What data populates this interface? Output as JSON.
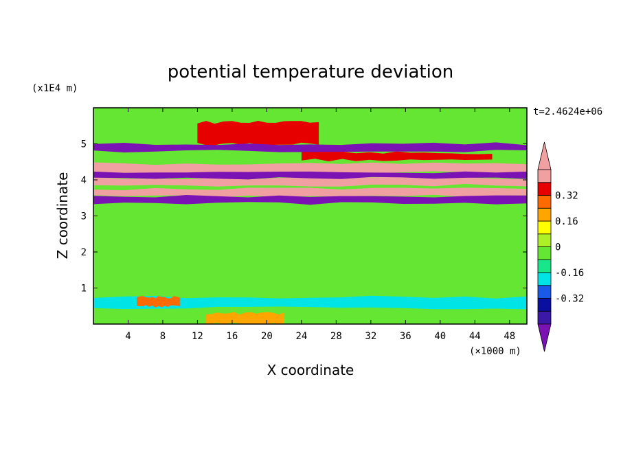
{
  "chart_data": {
    "type": "heatmap",
    "title": "potential temperature deviation",
    "xlabel": "X coordinate",
    "ylabel": "Z coordinate",
    "x_unit": "(×1000 m)",
    "y_unit": "(x1E4 m)",
    "time_label": "t=2.4624e+06",
    "xlim": [
      0,
      50
    ],
    "ylim": [
      0,
      6
    ],
    "x_ticks": [
      4,
      8,
      12,
      16,
      20,
      24,
      28,
      32,
      36,
      40,
      44,
      48
    ],
    "y_ticks": [
      1,
      2,
      3,
      4,
      5
    ],
    "colorbar": {
      "levels": [
        -0.48,
        -0.4,
        -0.32,
        -0.24,
        -0.16,
        -0.08,
        0,
        0.08,
        0.16,
        0.24,
        0.32,
        0.4,
        0.48
      ],
      "colors": [
        "#7b12b4",
        "#3c18a8",
        "#0a0fa0",
        "#1a5ae6",
        "#00e4e6",
        "#19e68a",
        "#64e632",
        "#aef028",
        "#ffff00",
        "#ffa500",
        "#ff6a00",
        "#e60000",
        "#f0a0a0"
      ],
      "tick_labels": [
        "0.32",
        "0.16",
        "0",
        "-0.16",
        "-0.32"
      ],
      "tick_values": [
        0.32,
        0.16,
        0,
        -0.16,
        -0.32
      ],
      "extend": "both"
    },
    "approx_bands": [
      {
        "z_range": [
          5.0,
          5.6
        ],
        "x_range": [
          12,
          26
        ],
        "value": 0.45
      },
      {
        "z_range": [
          4.55,
          4.75
        ],
        "x_range": [
          24,
          46
        ],
        "value": 0.45
      },
      {
        "z_range": [
          4.2,
          4.45
        ],
        "x_range": [
          0,
          50
        ],
        "value": 0.48
      },
      {
        "z_range": [
          3.85,
          4.05
        ],
        "x_range": [
          0,
          50
        ],
        "value": 0.48
      },
      {
        "z_range": [
          3.55,
          3.75
        ],
        "x_range": [
          0,
          50
        ],
        "value": 0.48
      },
      {
        "z_range": [
          4.8,
          5.0
        ],
        "x_range": [
          0,
          50
        ],
        "value": -0.45
      },
      {
        "z_range": [
          4.05,
          4.2
        ],
        "x_range": [
          0,
          50
        ],
        "value": -0.45
      },
      {
        "z_range": [
          3.35,
          3.55
        ],
        "x_range": [
          0,
          50
        ],
        "value": -0.45
      },
      {
        "z_range": [
          0.45,
          0.75
        ],
        "x_range": [
          0,
          50
        ],
        "value": -0.1
      },
      {
        "z_range": [
          0.5,
          0.75
        ],
        "x_range": [
          5,
          10
        ],
        "value": 0.35
      },
      {
        "z_range": [
          0.0,
          0.3
        ],
        "x_range": [
          13,
          22
        ],
        "value": 0.3
      }
    ]
  }
}
